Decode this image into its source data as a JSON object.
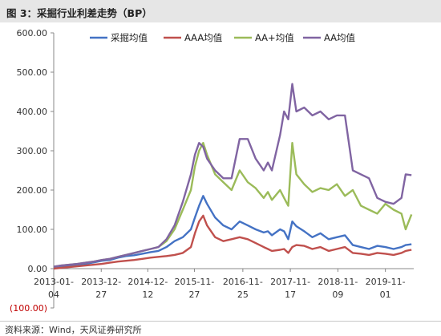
{
  "header": {
    "title": "图 3：采掘行业利差走势（BP）"
  },
  "source": "资料来源：Wind，天风证券研究所",
  "chart_data": {
    "type": "line",
    "title": "",
    "xlabel": "",
    "ylabel": "",
    "ylim": [
      -100,
      600
    ],
    "yticks": [
      -100,
      0,
      100,
      200,
      300,
      400,
      500,
      600
    ],
    "ytick_labels": [
      "(100.00)",
      "0.00",
      "100.00",
      "200.00",
      "300.00",
      "400.00",
      "500.00",
      "600.00"
    ],
    "xticks": [
      {
        "date": "2013-01-04",
        "line1": "2013-01-",
        "line2": "04"
      },
      {
        "date": "2013-12-27",
        "line1": "2013-12-",
        "line2": "27"
      },
      {
        "date": "2014-12-12",
        "line1": "2014-12-",
        "line2": "12"
      },
      {
        "date": "2015-11-27",
        "line1": "2015-11-",
        "line2": "27"
      },
      {
        "date": "2016-11-25",
        "line1": "2016-11-",
        "line2": "25"
      },
      {
        "date": "2017-11-17",
        "line1": "2017-11-",
        "line2": "17"
      },
      {
        "date": "2018-11-09",
        "line1": "2018-11-",
        "line2": "09"
      },
      {
        "date": "2019-11-01",
        "line1": "2019-11-",
        "line2": "01"
      }
    ],
    "x_range": [
      "2013-01-04",
      "2020-06-01"
    ],
    "grid": false,
    "legend_position": "top",
    "x": [
      "2013-01-04",
      "2013-03-01",
      "2013-05-01",
      "2013-07-01",
      "2013-09-01",
      "2013-11-01",
      "2014-01-01",
      "2014-03-01",
      "2014-05-01",
      "2014-07-01",
      "2014-09-01",
      "2014-11-01",
      "2015-01-01",
      "2015-03-01",
      "2015-05-01",
      "2015-07-01",
      "2015-09-01",
      "2015-11-01",
      "2015-12-01",
      "2016-01-01",
      "2016-02-01",
      "2016-03-01",
      "2016-05-01",
      "2016-07-01",
      "2016-09-01",
      "2016-11-01",
      "2017-01-01",
      "2017-03-01",
      "2017-05-01",
      "2017-06-01",
      "2017-07-01",
      "2017-09-01",
      "2017-10-01",
      "2017-11-01",
      "2017-12-01",
      "2018-01-01",
      "2018-03-01",
      "2018-05-01",
      "2018-07-01",
      "2018-09-01",
      "2018-11-01",
      "2019-01-01",
      "2019-03-01",
      "2019-05-01",
      "2019-07-01",
      "2019-09-01",
      "2019-11-01",
      "2020-01-01",
      "2020-03-01",
      "2020-04-01",
      "2020-05-15"
    ],
    "series": [
      {
        "name": "采掘均值",
        "color": "#4472c4",
        "values": [
          3,
          5,
          8,
          10,
          12,
          16,
          20,
          22,
          28,
          32,
          34,
          38,
          42,
          45,
          55,
          70,
          80,
          100,
          130,
          160,
          185,
          165,
          130,
          110,
          100,
          120,
          110,
          100,
          92,
          95,
          85,
          100,
          95,
          75,
          120,
          108,
          95,
          80,
          90,
          75,
          80,
          85,
          60,
          55,
          50,
          58,
          55,
          50,
          55,
          60,
          62
        ]
      },
      {
        "name": "AAA均值",
        "color": "#c0504d",
        "values": [
          0,
          2,
          4,
          6,
          8,
          10,
          12,
          15,
          18,
          20,
          22,
          25,
          28,
          30,
          32,
          35,
          40,
          55,
          90,
          120,
          135,
          110,
          80,
          70,
          75,
          80,
          75,
          65,
          55,
          50,
          45,
          48,
          50,
          40,
          55,
          60,
          58,
          50,
          55,
          45,
          50,
          55,
          40,
          38,
          35,
          40,
          38,
          35,
          40,
          45,
          48
        ]
      },
      {
        "name": "AA+均值",
        "color": "#9bbb59",
        "values": [
          5,
          8,
          10,
          12,
          15,
          18,
          22,
          25,
          30,
          35,
          40,
          45,
          50,
          55,
          70,
          100,
          150,
          200,
          260,
          300,
          320,
          290,
          240,
          220,
          200,
          250,
          220,
          205,
          180,
          195,
          175,
          200,
          180,
          160,
          320,
          240,
          215,
          195,
          205,
          200,
          215,
          185,
          200,
          160,
          150,
          140,
          165,
          150,
          140,
          100,
          138
        ]
      },
      {
        "name": "AA均值",
        "color": "#8064a2",
        "values": [
          5,
          8,
          10,
          12,
          15,
          18,
          22,
          25,
          30,
          35,
          40,
          45,
          50,
          55,
          75,
          110,
          170,
          240,
          290,
          320,
          310,
          280,
          250,
          230,
          230,
          330,
          330,
          280,
          250,
          270,
          250,
          340,
          400,
          380,
          470,
          400,
          410,
          390,
          400,
          380,
          390,
          390,
          250,
          240,
          230,
          180,
          170,
          165,
          180,
          240,
          238
        ]
      }
    ]
  }
}
